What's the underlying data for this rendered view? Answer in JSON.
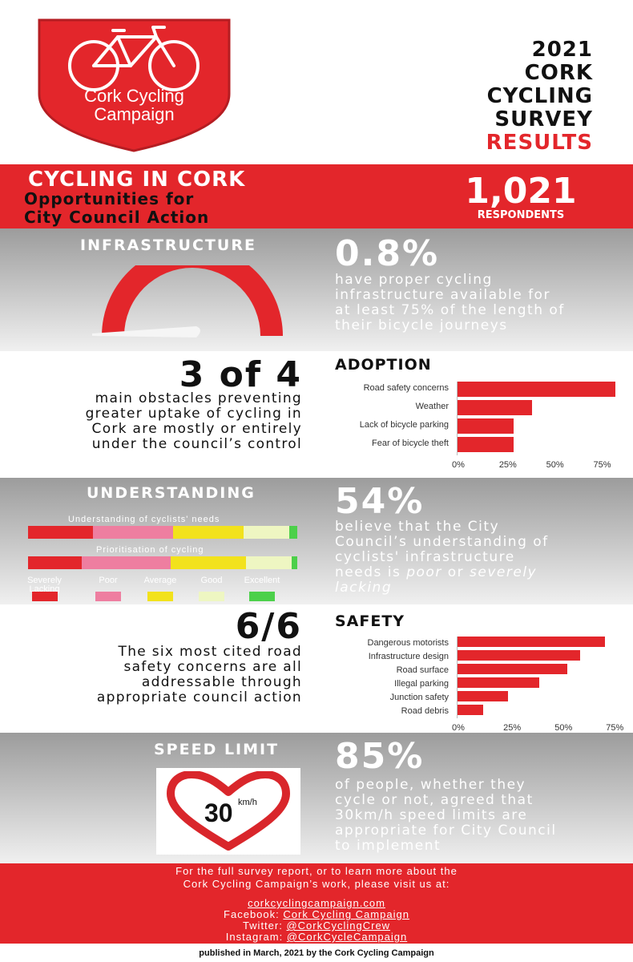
{
  "logo": {
    "line1": "Cork Cycling",
    "line2": "Campaign"
  },
  "survey_title": {
    "line1": "2021",
    "line2": "CORK",
    "line3": "CYCLING",
    "line4": "SURVEY",
    "line5": "RESULTS"
  },
  "banner": {
    "title": "CYCLING IN CORK",
    "subtitle_line1": "Opportunities for",
    "subtitle_line2": "City Council Action",
    "respondents_value": "1,021",
    "respondents_label": "RESPONDENTS"
  },
  "infrastructure": {
    "title": "INFRASTRUCTURE",
    "value": "0.8%",
    "gauge_fraction": 0.008,
    "desc_line1": "have proper cycling",
    "desc_line2": "infrastructure available for",
    "desc_line3": "at least 75% of the length of",
    "desc_line4": "their bicycle journeys"
  },
  "adoption": {
    "big": "3 of 4",
    "desc_line1": "main obstacles preventing",
    "desc_line2": "greater uptake of cycling in",
    "desc_line3": "Cork are mostly or entirely",
    "desc_line4": "under the council’s control",
    "title": "ADOPTION"
  },
  "understanding": {
    "title": "UNDERSTANDING",
    "value": "54%",
    "bar1_caption": "Understanding of cyclists' needs",
    "bar2_caption": "Prioritisation of cycling",
    "legend": [
      {
        "label_line1": "Severely",
        "label_line2": "Lacking",
        "color": "#e3262b"
      },
      {
        "label_line1": "Poor",
        "label_line2": "",
        "color": "#ee7ea0"
      },
      {
        "label_line1": "Average",
        "label_line2": "",
        "color": "#f2e21c"
      },
      {
        "label_line1": "Good",
        "label_line2": "",
        "color": "#eef6c2"
      },
      {
        "label_line1": "Excellent",
        "label_line2": "",
        "color": "#4cd04a"
      }
    ],
    "bar1_shares": [
      0.24,
      0.3,
      0.26,
      0.17,
      0.03
    ],
    "bar2_shares": [
      0.2,
      0.33,
      0.28,
      0.17,
      0.02
    ],
    "desc_line1": "believe that the City",
    "desc_line2": "Council’s understanding of",
    "desc_line3": "cyclists' infrastructure",
    "desc_line4": "needs is ",
    "desc_em1": "poor",
    "desc_mid": " or ",
    "desc_em2": "severely",
    "desc_em3": "lacking"
  },
  "safety": {
    "big": "6/6",
    "desc_line1": "The six most cited road",
    "desc_line2": "safety concerns are all",
    "desc_line3": "addressable through",
    "desc_line4": "appropriate council action",
    "title": "SAFETY"
  },
  "speed_limit": {
    "title": "SPEED LIMIT",
    "value": "85%",
    "sign_number": "30",
    "sign_unit": "km/h",
    "desc_line1": "of people, whether they",
    "desc_line2": "cycle or not, agreed that",
    "desc_line3": "30km/h speed limits are",
    "desc_line4": "appropriate for City Council",
    "desc_line5": "to implement"
  },
  "footer": {
    "line1": "For the full survey report, or to learn more about the",
    "line2": "Cork Cycling Campaign’s work, please visit us at:",
    "website": "corkcyclingcampaign.com",
    "facebook_label": "Facebook: ",
    "facebook_link": "Cork Cycling Campaign",
    "twitter_label": "Twitter: ",
    "twitter_link": "@CorkCyclingCrew",
    "instagram_label": "Instagram: ",
    "instagram_link": "@CorkCycleCampaign",
    "published": "published in March, 2021 by the Cork Cycling Campaign"
  },
  "colors": {
    "accent": "#e3262b",
    "grey": "#9c9c9c"
  },
  "chart_data": [
    {
      "type": "bar",
      "orientation": "horizontal",
      "title": "ADOPTION",
      "categories": [
        "Road safety concerns",
        "Weather",
        "Lack of bicycle parking",
        "Fear of bicycle theft"
      ],
      "values": [
        84,
        40,
        30,
        30
      ],
      "xticks": [
        "0%",
        "25%",
        "50%",
        "75%"
      ],
      "xlim": [
        0,
        85
      ],
      "grid": false
    },
    {
      "type": "bar",
      "orientation": "horizontal",
      "title": "SAFETY",
      "categories": [
        "Dangerous motorists",
        "Infrastructure design",
        "Road surface",
        "Illegal parking",
        "Junction safety",
        "Road debris"
      ],
      "values": [
        72,
        60,
        54,
        40,
        25,
        13
      ],
      "xticks": [
        "0%",
        "25%",
        "50%",
        "75%"
      ],
      "xlim": [
        0,
        78
      ],
      "grid": false
    }
  ]
}
